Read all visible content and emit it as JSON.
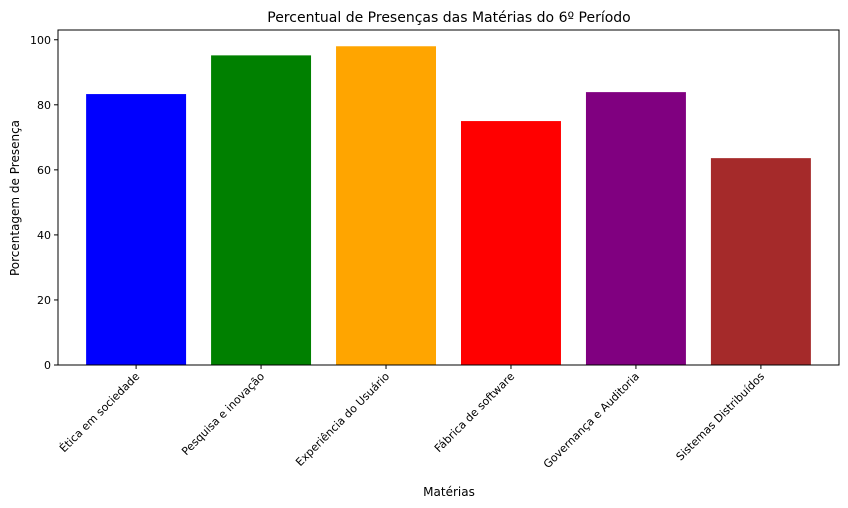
{
  "chart_data": {
    "type": "bar",
    "title": "Percentual de Presenças das Matérias do 6º Período",
    "xlabel": "Matérias",
    "ylabel": "Porcentagem de Presença",
    "categories": [
      "Ética em sociedade",
      "Pesquisa e inovação",
      "Experiência do Usuário",
      "Fábrica de software",
      "Governança e Auditoria",
      "Sistemas Distribuídos"
    ],
    "values": [
      83.3,
      95.2,
      98.0,
      75.0,
      83.9,
      63.6
    ],
    "colors": [
      "#0000ff",
      "#008000",
      "#ffa500",
      "#ff0000",
      "#800080",
      "#a52a2a"
    ],
    "yticks": [
      0,
      20,
      40,
      60,
      80,
      100
    ],
    "ylim": [
      0,
      103
    ],
    "grid": false,
    "legend": "none"
  }
}
